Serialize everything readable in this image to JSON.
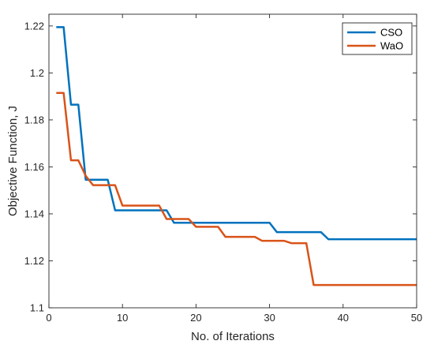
{
  "chart_data": {
    "type": "line",
    "title": "",
    "xlabel": "No. of Iterations",
    "ylabel": "Objective Function, J",
    "xlim": [
      0,
      50
    ],
    "ylim": [
      1.1,
      1.225
    ],
    "xticks": [
      0,
      10,
      20,
      30,
      40,
      50
    ],
    "yticks": [
      1.1,
      1.12,
      1.14,
      1.16,
      1.18,
      1.2,
      1.22
    ],
    "xtick_labels": [
      "0",
      "10",
      "20",
      "30",
      "40",
      "50"
    ],
    "ytick_labels": [
      "1.1",
      "1.12",
      "1.14",
      "1.16",
      "1.18",
      "1.2",
      "1.22"
    ],
    "grid": false,
    "legend_position": "top-right",
    "series": [
      {
        "name": "CSO",
        "color": "#0072BD",
        "x": [
          1,
          2,
          3,
          4,
          5,
          6,
          7,
          8,
          9,
          10,
          11,
          12,
          13,
          14,
          15,
          16,
          17,
          18,
          19,
          20,
          21,
          22,
          23,
          24,
          25,
          26,
          27,
          28,
          29,
          30,
          31,
          32,
          33,
          34,
          35,
          36,
          37,
          38,
          39,
          40,
          41,
          42,
          43,
          44,
          45,
          46,
          47,
          48,
          49,
          50
        ],
        "values": [
          1.2195,
          1.2195,
          1.1865,
          1.1865,
          1.1545,
          1.1545,
          1.1545,
          1.1545,
          1.1415,
          1.1415,
          1.1415,
          1.1415,
          1.1415,
          1.1415,
          1.1415,
          1.1415,
          1.1362,
          1.1362,
          1.1362,
          1.1362,
          1.1362,
          1.1362,
          1.1362,
          1.1362,
          1.1362,
          1.1362,
          1.1362,
          1.1362,
          1.1362,
          1.1362,
          1.1322,
          1.1322,
          1.1322,
          1.1322,
          1.1322,
          1.1322,
          1.1322,
          1.1292,
          1.1292,
          1.1292,
          1.1292,
          1.1292,
          1.1292,
          1.1292,
          1.1292,
          1.1292,
          1.1292,
          1.1292,
          1.1292,
          1.1292
        ]
      },
      {
        "name": "WaO",
        "color": "#D95319",
        "x": [
          1,
          2,
          3,
          4,
          5,
          6,
          7,
          8,
          9,
          10,
          11,
          12,
          13,
          14,
          15,
          16,
          17,
          18,
          19,
          20,
          21,
          22,
          23,
          24,
          25,
          26,
          27,
          28,
          29,
          30,
          31,
          32,
          33,
          34,
          35,
          36,
          37,
          38,
          39,
          40,
          41,
          42,
          43,
          44,
          45,
          46,
          47,
          48,
          49,
          50
        ],
        "values": [
          1.1915,
          1.1915,
          1.1628,
          1.1628,
          1.1562,
          1.1522,
          1.1522,
          1.1522,
          1.1522,
          1.1435,
          1.1435,
          1.1435,
          1.1435,
          1.1435,
          1.1435,
          1.1378,
          1.1378,
          1.1378,
          1.1378,
          1.1345,
          1.1345,
          1.1345,
          1.1345,
          1.1302,
          1.1302,
          1.1302,
          1.1302,
          1.1302,
          1.1285,
          1.1285,
          1.1285,
          1.1285,
          1.1275,
          1.1275,
          1.1275,
          1.1097,
          1.1097,
          1.1097,
          1.1097,
          1.1097,
          1.1097,
          1.1097,
          1.1097,
          1.1097,
          1.1097,
          1.1097,
          1.1097,
          1.1097,
          1.1097,
          1.1097
        ]
      }
    ]
  }
}
